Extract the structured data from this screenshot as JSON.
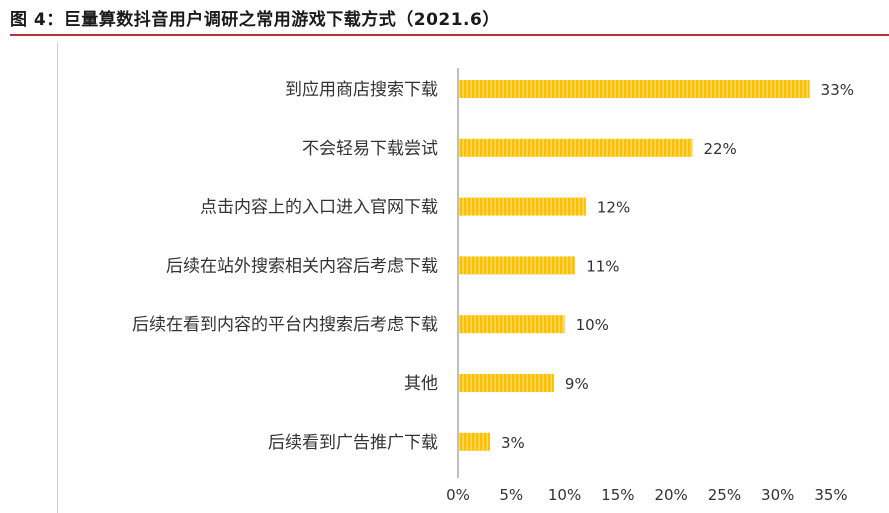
{
  "figure": {
    "title": "图 4：巨量算数抖音用户调研之常用游戏下载方式（2021.6）"
  },
  "colors": {
    "bar": "#ffc000",
    "bar_stripe": "#ffe07a",
    "axis": "#bfbfbf",
    "title_rule": "#b8343c"
  },
  "chart_data": {
    "type": "bar",
    "orientation": "horizontal",
    "categories": [
      "到应用商店搜索下载",
      "不会轻易下载尝试",
      "点击内容上的入口进入官网下载",
      "后续在站外搜索相关内容后考虑下载",
      "后续在看到内容的平台内搜索后考虑下载",
      "其他",
      "后续看到广告推广下载"
    ],
    "values": [
      33,
      22,
      12,
      11,
      10,
      9,
      3
    ],
    "data_labels": [
      "33%",
      "22%",
      "12%",
      "11%",
      "10%",
      "9%",
      "3%"
    ],
    "x_ticks": [
      0,
      5,
      10,
      15,
      20,
      25,
      30,
      35
    ],
    "x_tick_labels": [
      "0%",
      "5%",
      "10%",
      "15%",
      "20%",
      "25%",
      "30%",
      "35%"
    ],
    "xlim": [
      0,
      35
    ],
    "grid": false,
    "legend": "none"
  }
}
